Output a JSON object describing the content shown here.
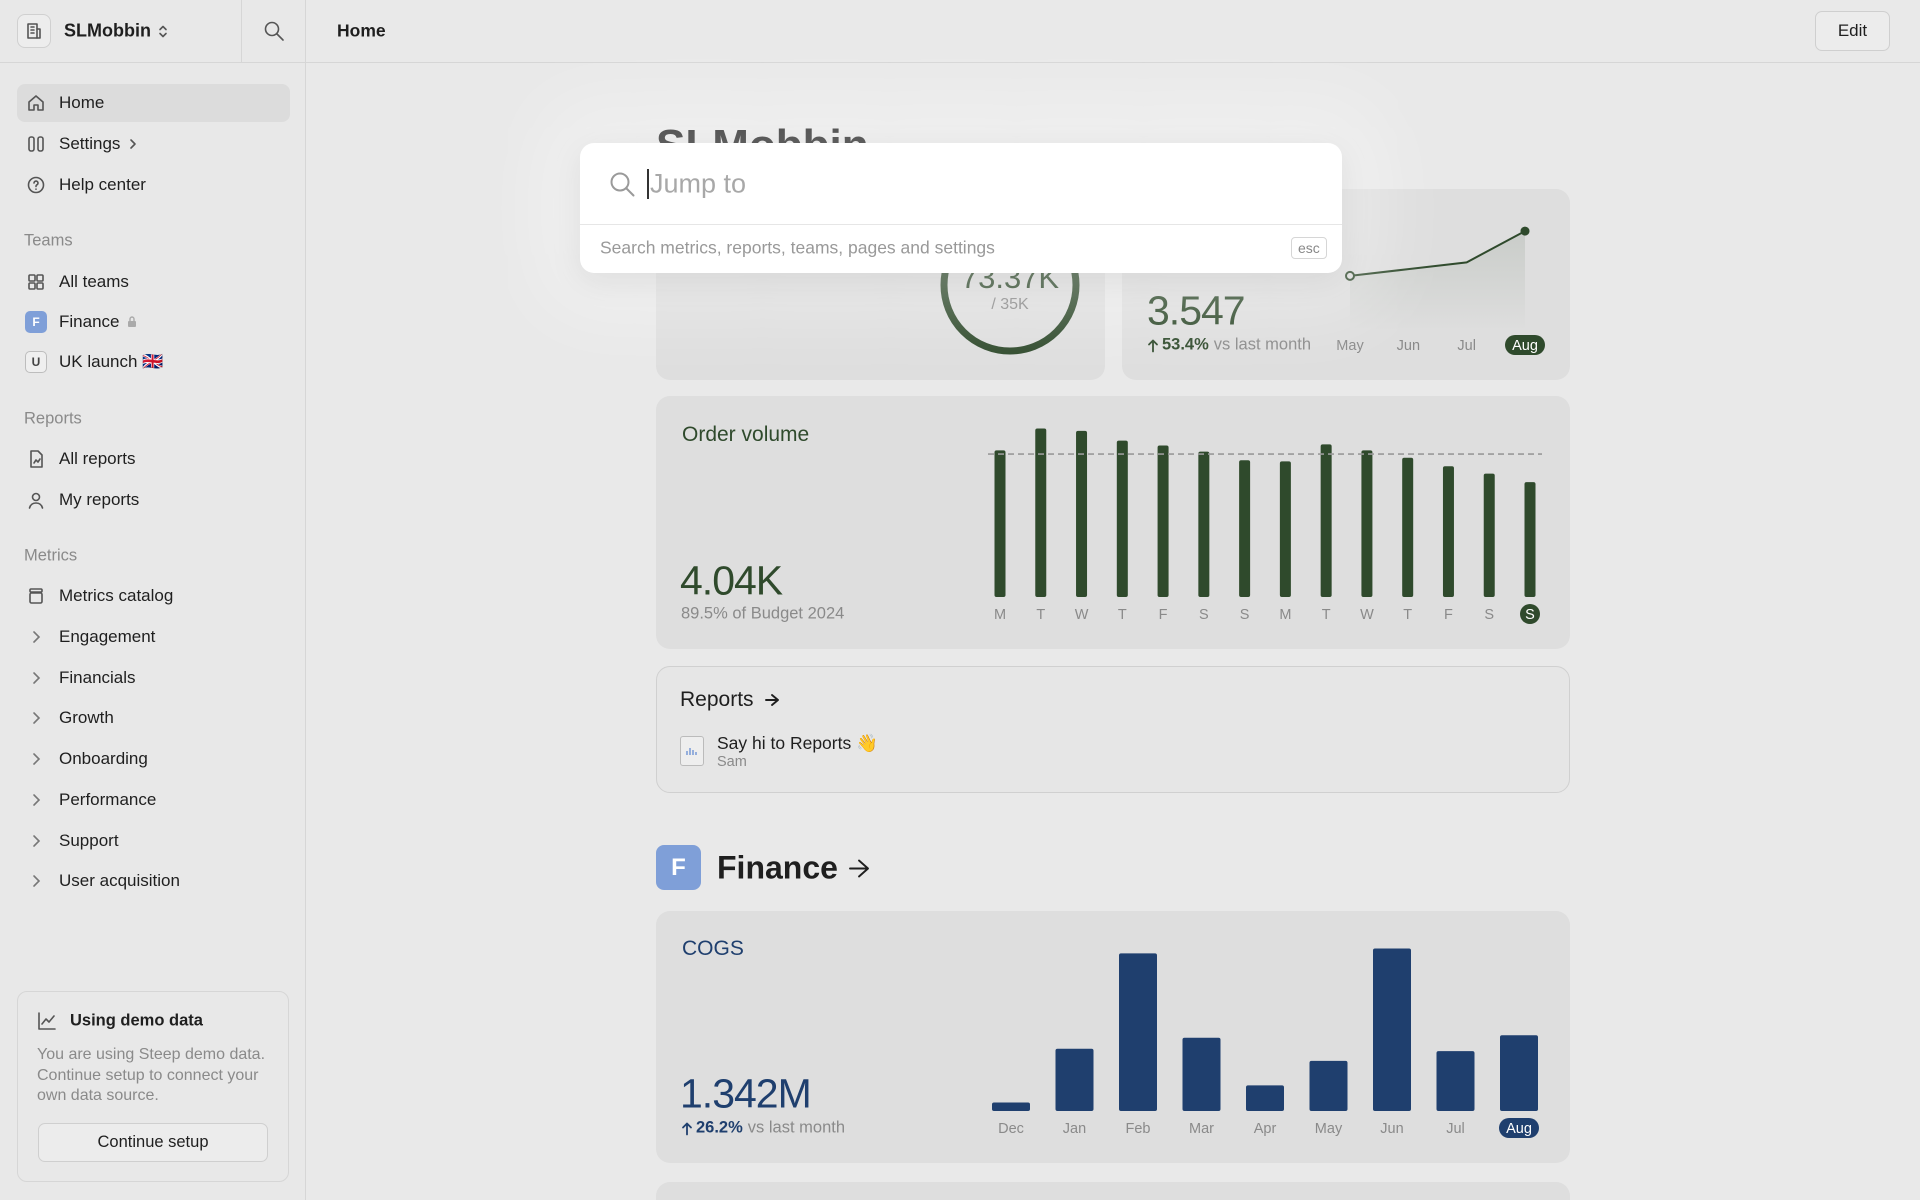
{
  "sidebar": {
    "workspace": "SLMobbin",
    "nav": [
      "Home",
      "Settings",
      "Help center"
    ],
    "teams_title": "Teams",
    "teams": [
      {
        "label": "All teams"
      },
      {
        "badge": "F",
        "label": "Finance"
      },
      {
        "badge": "U",
        "label": "UK launch 🇬🇧"
      }
    ],
    "reports_title": "Reports",
    "reports": [
      "All reports",
      "My reports"
    ],
    "metrics_title": "Metrics",
    "metrics_catalog": "Metrics catalog",
    "metrics": [
      "Engagement",
      "Financials",
      "Growth",
      "Onboarding",
      "Performance",
      "Support",
      "User acquisition"
    ],
    "demo": {
      "title": "Using demo data",
      "text": "You are using Steep demo data. Continue setup to connect your own data source.",
      "button": "Continue setup"
    }
  },
  "header": {
    "title": "Home",
    "edit": "Edit"
  },
  "page_title": "SLMobbin",
  "gauge_card": {
    "value": "73.37K",
    "target": "/ 35K"
  },
  "trend_card": {
    "value": "3.547",
    "change": "53.4%",
    "change_label": "vs last month",
    "chart": {
      "type": "line",
      "categories": [
        "May",
        "Jun",
        "Jul",
        "Aug"
      ],
      "values": [
        51,
        59,
        67,
        104
      ],
      "ylim": [
        0,
        110
      ],
      "color": "#2f4a2c"
    }
  },
  "order_volume": {
    "title": "Order volume",
    "value": "4.04K",
    "subtitle": "89.5% of Budget 2024",
    "chart": {
      "type": "bar",
      "categories": [
        "M",
        "T",
        "W",
        "T",
        "F",
        "S",
        "S",
        "M",
        "T",
        "W",
        "T",
        "F",
        "S",
        "S"
      ],
      "values": [
        120,
        138,
        136,
        128,
        124,
        119,
        112,
        111,
        125,
        120,
        114,
        107,
        101,
        94
      ],
      "budget": 117,
      "ylim": [
        0,
        140
      ],
      "color": "#2f4a2c"
    }
  },
  "reports": {
    "title": "Reports",
    "items": [
      {
        "title": "Say hi to Reports 👋",
        "author": "Sam"
      }
    ]
  },
  "finance": {
    "badge": "F",
    "title": "Finance"
  },
  "cogs": {
    "title": "COGS",
    "value": "1.342M",
    "change": "26.2%",
    "change_label": "vs last month",
    "chart": {
      "type": "bar",
      "categories": [
        "Dec",
        "Jan",
        "Feb",
        "Mar",
        "Apr",
        "May",
        "Jun",
        "Jul",
        "Aug"
      ],
      "values": [
        7,
        51,
        129,
        60,
        21,
        41,
        133,
        49,
        62
      ],
      "ylim": [
        0,
        140
      ],
      "color": "#1f3f6e"
    }
  },
  "search": {
    "placeholder": "Jump to",
    "hint": "Search metrics, reports, teams, pages and settings",
    "esc": "esc"
  }
}
